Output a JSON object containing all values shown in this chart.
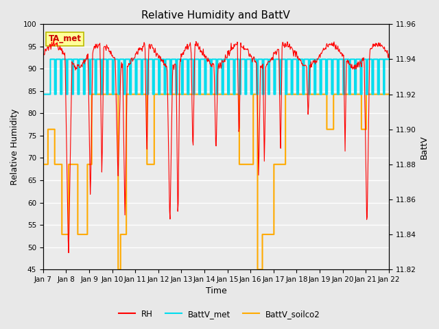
{
  "title": "Relative Humidity and BattV",
  "xlabel": "Time",
  "ylabel_left": "Relative Humidity",
  "ylabel_right": "BattV",
  "annotation_text": "TA_met",
  "annotation_bbox_facecolor": "#ffff99",
  "annotation_bbox_edgecolor": "#bbbb00",
  "annotation_text_color": "#cc0000",
  "rh_color": "#ff0000",
  "battv_met_color": "#00ddee",
  "battv_soilco2_color": "#ffaa00",
  "ylim_left": [
    45,
    100
  ],
  "ylim_right": [
    11.82,
    11.96
  ],
  "yticks_left": [
    45,
    50,
    55,
    60,
    65,
    70,
    75,
    80,
    85,
    90,
    95,
    100
  ],
  "yticks_right": [
    11.82,
    11.84,
    11.86,
    11.88,
    11.9,
    11.92,
    11.94,
    11.96
  ],
  "background_color": "#e8e8e8",
  "plot_bg_color": "#ebebeb",
  "grid_color": "#ffffff",
  "xtick_labels": [
    "Jan 7",
    "Jan 8",
    "Jan 9",
    "Jan 10",
    "Jan 11",
    "Jan 12",
    "Jan 13",
    "Jan 14",
    "Jan 15",
    "Jan 16",
    "Jan 17",
    "Jan 18",
    "Jan 19",
    "Jan 20",
    "Jan 21",
    "Jan 22"
  ],
  "legend_labels": [
    "RH",
    "BattV_met",
    "BattV_soilco2"
  ],
  "title_fontsize": 11,
  "axis_label_fontsize": 9,
  "tick_fontsize": 7.5,
  "rh_linewidth": 0.8,
  "batt_linewidth": 1.5
}
